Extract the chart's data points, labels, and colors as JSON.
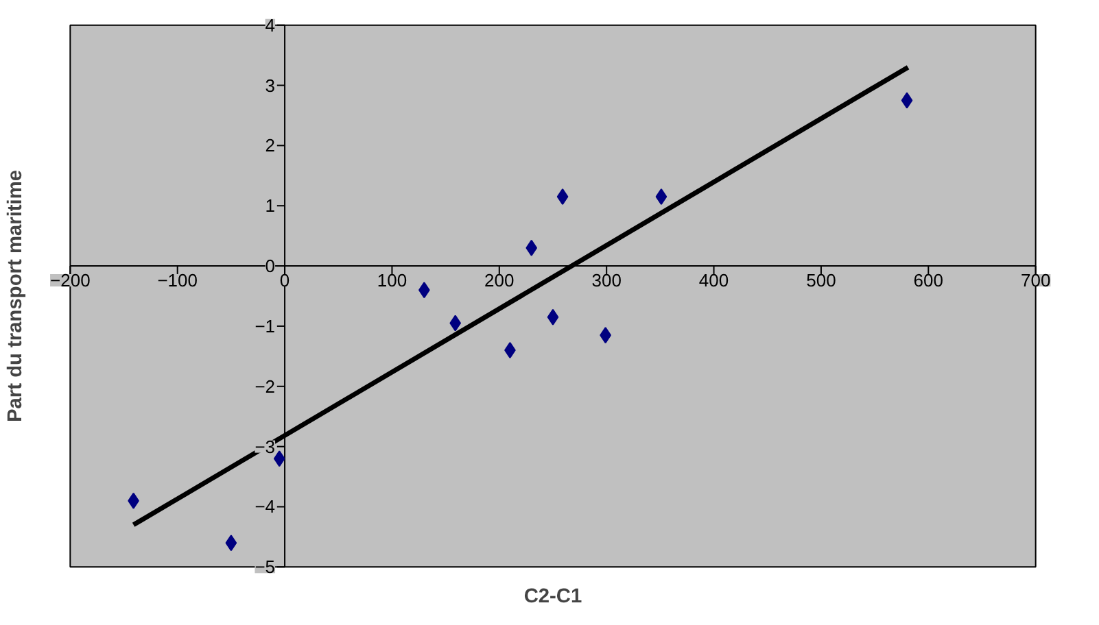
{
  "chart_data": {
    "type": "scatter",
    "xlabel": "C2-C1",
    "ylabel": "Part du transport maritime",
    "xlim": [
      -200,
      700
    ],
    "ylim": [
      -5,
      4
    ],
    "xticks": [
      -200,
      -100,
      0,
      100,
      200,
      300,
      400,
      500,
      600,
      700
    ],
    "yticks": [
      -5,
      -4,
      -3,
      -2,
      -1,
      0,
      1,
      2,
      3,
      4
    ],
    "grid": false,
    "series": [
      {
        "type": "scatter",
        "marker": "diamond",
        "color": "#000080",
        "x": [
          -141,
          -50,
          -5,
          130,
          159,
          210,
          230,
          250,
          259,
          299,
          351,
          580
        ],
        "values": [
          -3.9,
          -4.6,
          -3.2,
          -0.4,
          -0.95,
          -1.4,
          0.3,
          -0.85,
          1.15,
          -1.15,
          1.15,
          2.75
        ]
      },
      {
        "type": "line",
        "color": "#000000",
        "x": [
          -141,
          581
        ],
        "values": [
          -4.3,
          3.3
        ]
      }
    ]
  }
}
